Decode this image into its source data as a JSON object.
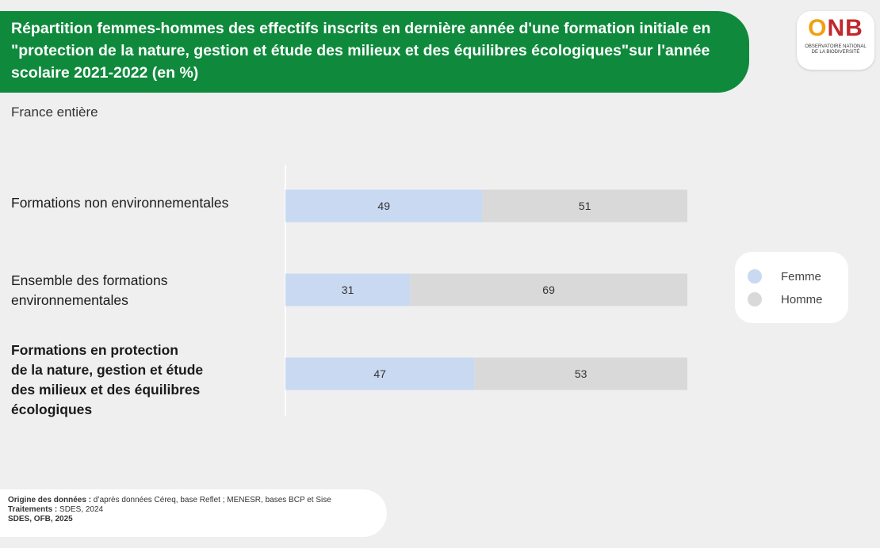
{
  "header": {
    "title": "Répartition femmes-hommes des effectifs inscrits en dernière année d'une formation initiale en \"protection de la nature, gestion et étude des milieux et des équilibres écologiques\"sur l'année scolaire 2021-2022 (en %)",
    "subtitle": "France entière"
  },
  "logo": {
    "mark_o": "O",
    "mark_nb": "NB",
    "line1": "OBSERVATOIRE NATIONAL",
    "line2": "DE LA BIODIVERSITÉ"
  },
  "chart_data": {
    "type": "bar",
    "orientation": "horizontal",
    "stacked": true,
    "categories": [
      "Formations non environnementales",
      "Ensemble des formations environnementales",
      "Formations en protection de la nature, gestion et étude des milieux et des équilibres écologiques"
    ],
    "series": [
      {
        "name": "Femme",
        "values": [
          49,
          31,
          47
        ],
        "color": "#c9d9f1"
      },
      {
        "name": "Homme",
        "values": [
          51,
          69,
          53
        ],
        "color": "#d9d9d9"
      }
    ],
    "xlim": [
      0,
      100
    ],
    "legend_position": "right",
    "grid": false
  },
  "labels": {
    "cat1_lines": [
      "Formations non environnementales"
    ],
    "cat2_lines": [
      "Ensemble des formations",
      "environnementales"
    ],
    "cat3_lines": [
      "Formations en protection",
      "de la nature, gestion et étude",
      "des milieux et des équilibres",
      "écologiques"
    ]
  },
  "source": {
    "origin_label": "Origine des données :",
    "origin_text": " d’après données Céreq, base Reflet ; MENESR, bases BCP et Sise",
    "treatment_label": "Traitements :",
    "treatment_text": " SDES, 2024",
    "credit": "SDES, OFB, 2025"
  }
}
